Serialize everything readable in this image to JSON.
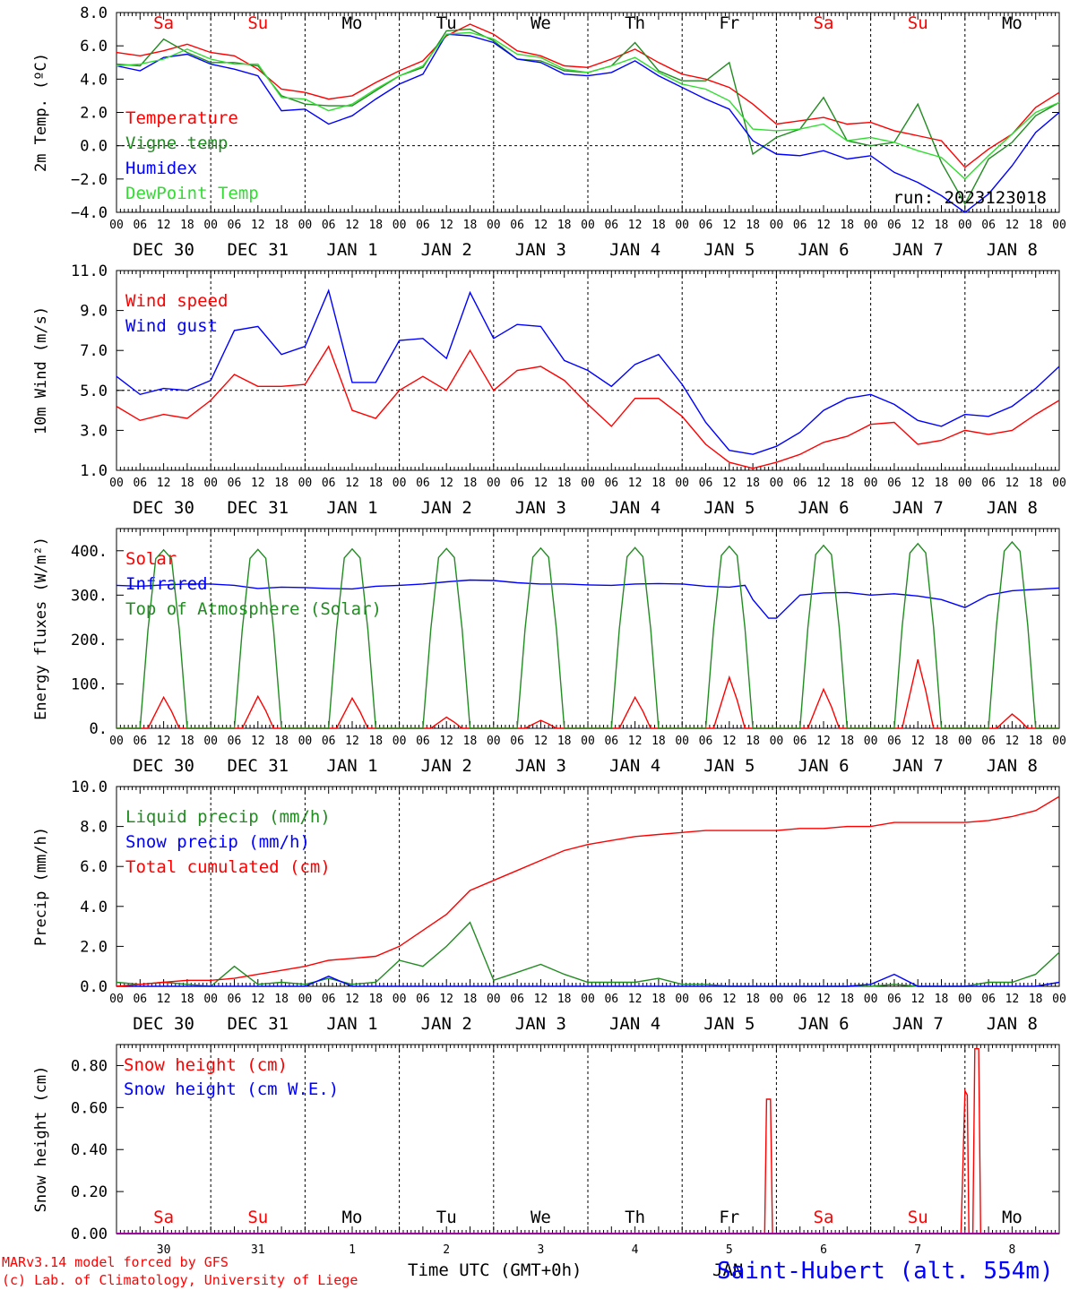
{
  "colors": {
    "red": "#ff0000",
    "green": "#228b22",
    "blue": "#0000ff",
    "lightgreen": "#32dc32",
    "black": "#000000",
    "purple": "#a000a0"
  },
  "days": {
    "weekday_labels": [
      "Sa",
      "Su",
      "Mo",
      "Tu",
      "We",
      "Th",
      "Fr",
      "Sa",
      "Su",
      "Mo"
    ],
    "weekend_flags": [
      true,
      true,
      false,
      false,
      false,
      false,
      false,
      true,
      true,
      false
    ],
    "date_labels": [
      "DEC 30",
      "DEC 31",
      "JAN  1",
      "JAN  2",
      "JAN  3",
      "JAN  4",
      "JAN  5",
      "JAN  6",
      "JAN  7",
      "JAN  8"
    ],
    "day_numbers": [
      "30",
      "31",
      "1",
      "2",
      "3",
      "4",
      "5",
      "6",
      "7",
      "8"
    ],
    "hour_ticks": [
      "00",
      "06",
      "12",
      "18"
    ],
    "final_hour_tick": "00"
  },
  "footer": {
    "credit_line1": "MARv3.14 model forced by GFS",
    "credit_line2": "(c) Lab. of Climatology, University of Liege",
    "xlabel": "Time UTC (GMT+0h)",
    "station": "Saint-Hubert (alt. 554m)",
    "overlap_text": "JAN"
  },
  "chart_data": [
    {
      "type": "line",
      "ylabel": "2m Temp. (ºC)",
      "ylim": [
        -4,
        8
      ],
      "yticks": [
        "8.0",
        "6.0",
        "4.0",
        "2.0",
        "0.0",
        "−2.0",
        "−4.0"
      ],
      "yticks_values": [
        8,
        6,
        4,
        2,
        0,
        -2,
        -4
      ],
      "ref_line": 0,
      "annotation": "run: 2023123018",
      "series": [
        {
          "name": "Temperature",
          "color": "#ff0000",
          "x": [
            0,
            6,
            12,
            18,
            24,
            30,
            36,
            42,
            48,
            54,
            60,
            66,
            72,
            78,
            84,
            90,
            96,
            102,
            108,
            114,
            120,
            126,
            132,
            138,
            144,
            150,
            156,
            162,
            168,
            174,
            180,
            186,
            192,
            198,
            204,
            210,
            216,
            222,
            228,
            234,
            240
          ],
          "values": [
            5.6,
            5.4,
            5.7,
            6.1,
            5.6,
            5.4,
            4.6,
            3.4,
            3.2,
            2.8,
            3.0,
            3.8,
            4.5,
            5.1,
            6.6,
            7.3,
            6.7,
            5.7,
            5.4,
            4.8,
            4.7,
            5.2,
            5.8,
            5.0,
            4.3,
            4.0,
            3.5,
            2.5,
            1.3,
            1.5,
            1.7,
            1.3,
            1.4,
            0.9,
            0.6,
            0.3,
            -1.3,
            -0.2,
            0.7,
            2.3,
            3.2
          ]
        },
        {
          "name": "Vigne temp",
          "color": "#228b22",
          "x": [
            0,
            6,
            12,
            18,
            24,
            30,
            36,
            42,
            48,
            54,
            60,
            66,
            72,
            78,
            84,
            90,
            96,
            102,
            108,
            114,
            120,
            126,
            132,
            138,
            144,
            150,
            156,
            162,
            168,
            174,
            180,
            186,
            192,
            198,
            204,
            210,
            216,
            222,
            228,
            234,
            240
          ],
          "values": [
            4.9,
            4.8,
            6.4,
            5.6,
            5.0,
            5.0,
            4.8,
            3.0,
            2.5,
            2.4,
            2.4,
            3.3,
            4.2,
            4.7,
            6.9,
            7.0,
            6.3,
            5.2,
            5.1,
            4.5,
            4.4,
            4.8,
            6.2,
            4.5,
            3.9,
            3.9,
            5.0,
            -0.5,
            0.5,
            1.0,
            2.9,
            0.3,
            0.0,
            0.2,
            2.5,
            -1.0,
            -3.5,
            -0.8,
            0.2,
            1.8,
            2.6
          ]
        },
        {
          "name": "Humidex",
          "color": "#0000ff",
          "x": [
            0,
            6,
            12,
            18,
            24,
            30,
            36,
            42,
            48,
            54,
            60,
            66,
            72,
            78,
            84,
            90,
            96,
            102,
            108,
            114,
            120,
            126,
            132,
            138,
            144,
            150,
            156,
            162,
            168,
            174,
            180,
            186,
            192,
            198,
            204,
            210,
            216,
            222,
            228,
            234,
            240
          ],
          "values": [
            4.8,
            4.5,
            5.3,
            5.5,
            4.9,
            4.6,
            4.2,
            2.1,
            2.2,
            1.3,
            1.8,
            2.8,
            3.7,
            4.3,
            6.7,
            6.6,
            6.2,
            5.2,
            5.0,
            4.3,
            4.2,
            4.4,
            5.1,
            4.2,
            3.5,
            2.8,
            2.2,
            0.3,
            -0.5,
            -0.6,
            -0.3,
            -0.8,
            -0.6,
            -1.6,
            -2.2,
            -3.0,
            -4.0,
            -2.9,
            -1.2,
            0.8,
            2.0
          ]
        },
        {
          "name": "DewPoint Temp",
          "color": "#32dc32",
          "x": [
            0,
            6,
            12,
            18,
            24,
            30,
            36,
            42,
            48,
            54,
            60,
            66,
            72,
            78,
            84,
            90,
            96,
            102,
            108,
            114,
            120,
            126,
            132,
            138,
            144,
            150,
            156,
            162,
            168,
            174,
            180,
            186,
            192,
            198,
            204,
            210,
            216,
            222,
            228,
            234,
            240
          ],
          "values": [
            4.8,
            4.9,
            5.2,
            5.8,
            5.2,
            4.9,
            4.9,
            2.9,
            2.8,
            2.1,
            2.5,
            3.4,
            4.2,
            4.8,
            6.7,
            6.8,
            6.4,
            5.5,
            5.3,
            4.6,
            4.4,
            4.8,
            5.3,
            4.4,
            3.7,
            3.4,
            2.7,
            1.0,
            0.9,
            1.0,
            1.3,
            0.3,
            0.5,
            0.2,
            -0.3,
            -0.7,
            -2.0,
            -0.6,
            0.7,
            2.0,
            2.6
          ]
        }
      ]
    },
    {
      "type": "line",
      "ylabel": "10m Wind (m/s)",
      "ylim": [
        1,
        11
      ],
      "yticks": [
        "11.0",
        "9.0",
        "7.0",
        "5.0",
        "3.0",
        "1.0"
      ],
      "yticks_values": [
        11,
        9,
        7,
        5,
        3,
        1
      ],
      "ref_line": 5,
      "series": [
        {
          "name": "Wind speed",
          "color": "#ff0000",
          "x": [
            0,
            6,
            12,
            18,
            24,
            30,
            36,
            42,
            48,
            54,
            60,
            66,
            72,
            78,
            84,
            90,
            96,
            102,
            108,
            114,
            120,
            126,
            132,
            138,
            144,
            150,
            156,
            162,
            168,
            174,
            180,
            186,
            192,
            198,
            204,
            210,
            216,
            222,
            228,
            234,
            240
          ],
          "values": [
            4.2,
            3.5,
            3.8,
            3.6,
            4.5,
            5.8,
            5.2,
            5.2,
            5.3,
            7.2,
            4.0,
            3.6,
            5.0,
            5.7,
            5.0,
            7.0,
            5.0,
            6.0,
            6.2,
            5.5,
            4.3,
            3.2,
            4.6,
            4.6,
            3.7,
            2.3,
            1.4,
            1.1,
            1.4,
            1.8,
            2.4,
            2.7,
            3.3,
            3.4,
            2.3,
            2.5,
            3.0,
            2.8,
            3.0,
            3.8,
            4.5
          ]
        },
        {
          "name": "Wind gust",
          "color": "#0000ff",
          "x": [
            0,
            6,
            12,
            18,
            24,
            30,
            36,
            42,
            48,
            54,
            60,
            66,
            72,
            78,
            84,
            90,
            96,
            102,
            108,
            114,
            120,
            126,
            132,
            138,
            144,
            150,
            156,
            162,
            168,
            174,
            180,
            186,
            192,
            198,
            204,
            210,
            216,
            222,
            228,
            234,
            240
          ],
          "values": [
            5.7,
            4.8,
            5.1,
            5.0,
            5.5,
            8.0,
            8.2,
            6.8,
            7.2,
            10.0,
            5.4,
            5.4,
            7.5,
            7.6,
            6.6,
            9.9,
            7.6,
            8.3,
            8.2,
            6.5,
            6.0,
            5.2,
            6.3,
            6.8,
            5.3,
            3.4,
            2.0,
            1.8,
            2.2,
            2.9,
            4.0,
            4.6,
            4.8,
            4.3,
            3.5,
            3.2,
            3.8,
            3.7,
            4.2,
            5.1,
            6.2
          ]
        }
      ]
    },
    {
      "type": "line",
      "ylabel": "Energy fluxes (W/m²)",
      "ylim": [
        0,
        450
      ],
      "yticks": [
        "400.",
        "300.",
        "200.",
        "100.",
        "0."
      ],
      "yticks_values": [
        400,
        300,
        200,
        100,
        0
      ],
      "series": [
        {
          "name": "Solar",
          "color": "#ff0000",
          "peaks": [
            70,
            72,
            68,
            25,
            18,
            70,
            115,
            88,
            155,
            32
          ]
        },
        {
          "name": "Infrared",
          "color": "#0000ff",
          "x": [
            0,
            6,
            12,
            18,
            24,
            30,
            36,
            42,
            48,
            54,
            60,
            66,
            72,
            78,
            84,
            90,
            96,
            102,
            108,
            114,
            120,
            126,
            132,
            138,
            144,
            150,
            156,
            160,
            162,
            166,
            168,
            174,
            180,
            186,
            192,
            198,
            204,
            210,
            216,
            222,
            228,
            234,
            240
          ],
          "values": [
            322,
            320,
            323,
            325,
            325,
            322,
            315,
            318,
            317,
            315,
            314,
            320,
            322,
            325,
            330,
            334,
            333,
            328,
            325,
            325,
            323,
            322,
            325,
            326,
            325,
            320,
            318,
            322,
            290,
            248,
            248,
            300,
            305,
            306,
            300,
            303,
            298,
            290,
            272,
            300,
            310,
            313,
            316
          ]
        },
        {
          "name": "Top of Atmosphere (Solar)",
          "color": "#228b22",
          "peaks": [
            402,
            403,
            404,
            405,
            406,
            407,
            410,
            412,
            416,
            420
          ]
        }
      ]
    },
    {
      "type": "line",
      "ylabel": "Precip (mm/h)",
      "ylim": [
        0,
        10
      ],
      "yticks": [
        "10.0",
        "8.0",
        "6.0",
        "4.0",
        "2.0",
        "0.0"
      ],
      "yticks_values": [
        10,
        8,
        6,
        4,
        2,
        0
      ],
      "series": [
        {
          "name": "Liquid precip (mm/h)",
          "color": "#228b22",
          "x": [
            0,
            6,
            12,
            18,
            24,
            30,
            36,
            42,
            48,
            54,
            60,
            66,
            72,
            78,
            84,
            90,
            96,
            102,
            108,
            114,
            120,
            126,
            132,
            138,
            144,
            150,
            156,
            162,
            168,
            174,
            180,
            186,
            192,
            198,
            204,
            210,
            216,
            222,
            228,
            234,
            240
          ],
          "values": [
            0.2,
            0.1,
            0.2,
            0.1,
            0.0,
            1.0,
            0.1,
            0.2,
            0.1,
            0.4,
            0.1,
            0.2,
            1.3,
            1.0,
            2.0,
            3.2,
            0.3,
            0.7,
            1.1,
            0.6,
            0.2,
            0.2,
            0.2,
            0.4,
            0.1,
            0.1,
            0.0,
            0.0,
            0.0,
            0.0,
            0.0,
            0.0,
            0.0,
            0.1,
            0.0,
            0.0,
            0.0,
            0.2,
            0.2,
            0.6,
            1.7
          ]
        },
        {
          "name": "Snow precip (mm/h)",
          "color": "#0000ff",
          "x": [
            0,
            6,
            12,
            18,
            24,
            30,
            36,
            42,
            48,
            54,
            60,
            66,
            72,
            78,
            84,
            90,
            96,
            102,
            108,
            114,
            120,
            126,
            132,
            138,
            144,
            150,
            156,
            162,
            168,
            174,
            180,
            186,
            192,
            198,
            204,
            210,
            216,
            222,
            228,
            234,
            240
          ],
          "values": [
            0,
            0,
            0,
            0,
            0,
            0,
            0,
            0,
            0,
            0.5,
            0,
            0,
            0,
            0,
            0,
            0,
            0,
            0,
            0,
            0,
            0,
            0,
            0,
            0,
            0,
            0,
            0,
            0,
            0,
            0,
            0,
            0,
            0.1,
            0.6,
            0,
            0,
            0,
            0,
            0,
            0,
            0.2
          ]
        },
        {
          "name": "Total cumulated (cm)",
          "color": "#ff0000",
          "x": [
            0,
            6,
            12,
            18,
            24,
            30,
            36,
            42,
            48,
            54,
            60,
            66,
            72,
            78,
            84,
            90,
            96,
            102,
            108,
            114,
            120,
            126,
            132,
            138,
            144,
            150,
            156,
            162,
            168,
            174,
            180,
            186,
            192,
            198,
            204,
            210,
            216,
            222,
            228,
            234,
            240
          ],
          "values": [
            0.0,
            0.1,
            0.2,
            0.3,
            0.3,
            0.4,
            0.6,
            0.8,
            1.0,
            1.3,
            1.4,
            1.5,
            2.0,
            2.8,
            3.6,
            4.8,
            5.3,
            5.8,
            6.3,
            6.8,
            7.1,
            7.3,
            7.5,
            7.6,
            7.7,
            7.8,
            7.8,
            7.8,
            7.8,
            7.9,
            7.9,
            8.0,
            8.0,
            8.2,
            8.2,
            8.2,
            8.2,
            8.3,
            8.5,
            8.8,
            9.5
          ]
        }
      ]
    },
    {
      "type": "line",
      "ylabel": "Snow height (cm)",
      "ylim": [
        0,
        0.9
      ],
      "yticks": [
        "0.80",
        "0.60",
        "0.40",
        "0.20",
        "0.00"
      ],
      "yticks_values": [
        0.8,
        0.6,
        0.4,
        0.2,
        0
      ],
      "series": [
        {
          "name": "Snow height (cm)",
          "color": "#ff0000",
          "x": [
            0,
            165,
            165.5,
            166.5,
            167,
            215,
            216,
            216.6,
            217,
            218,
            218.5,
            219.5,
            220,
            240
          ],
          "values": [
            0,
            0,
            0.64,
            0.64,
            0,
            0,
            0.68,
            0.66,
            0,
            0,
            0.88,
            0.88,
            0,
            0
          ]
        },
        {
          "name": "Snow height (cm W.E.)",
          "color": "#0000ff",
          "x": [
            0,
            240
          ],
          "values": [
            0,
            0
          ]
        }
      ]
    }
  ]
}
